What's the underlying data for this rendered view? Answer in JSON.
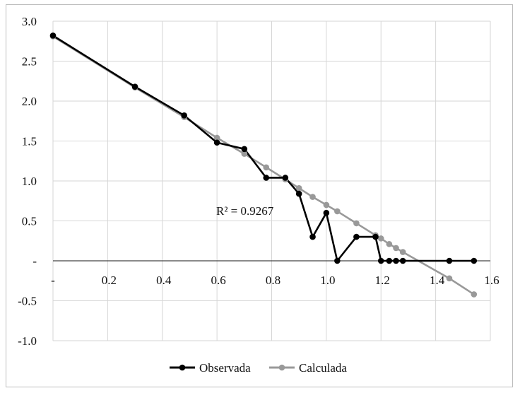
{
  "chart_data": {
    "type": "line",
    "title": "",
    "xlabel": "",
    "ylabel": "",
    "xlim": [
      0,
      1.6
    ],
    "ylim": [
      -1.0,
      3.0
    ],
    "x_ticks": [
      {
        "value": 0,
        "label": "-"
      },
      {
        "value": 0.2,
        "label": "0.2"
      },
      {
        "value": 0.4,
        "label": "0.4"
      },
      {
        "value": 0.6,
        "label": "0.6"
      },
      {
        "value": 0.8,
        "label": "0.8"
      },
      {
        "value": 1.0,
        "label": "1.0"
      },
      {
        "value": 1.2,
        "label": "1.2"
      },
      {
        "value": 1.4,
        "label": "1.4"
      },
      {
        "value": 1.6,
        "label": "1.6"
      }
    ],
    "y_ticks": [
      {
        "value": 3.0,
        "label": "3.0"
      },
      {
        "value": 2.5,
        "label": "2.5"
      },
      {
        "value": 2.0,
        "label": "2.0"
      },
      {
        "value": 1.5,
        "label": "1.5"
      },
      {
        "value": 1.0,
        "label": "1.0"
      },
      {
        "value": 0.5,
        "label": "0.5"
      },
      {
        "value": 0,
        "label": "-"
      },
      {
        "value": -0.5,
        "label": "-0.5"
      },
      {
        "value": -1.0,
        "label": "-1.0"
      }
    ],
    "grid": true,
    "legend": "bottom",
    "annotation": "R² = 0.9267",
    "series": [
      {
        "name": "Observada",
        "color": "#000000",
        "points": [
          [
            0,
            2.82
          ],
          [
            0.3,
            2.18
          ],
          [
            0.48,
            1.82
          ],
          [
            0.6,
            1.48
          ],
          [
            0.7,
            1.4
          ],
          [
            0.78,
            1.04
          ],
          [
            0.85,
            1.04
          ],
          [
            0.9,
            0.84
          ],
          [
            0.95,
            0.3
          ],
          [
            1.0,
            0.6
          ],
          [
            1.04,
            0
          ],
          [
            1.11,
            0.3
          ],
          [
            1.18,
            0.3
          ],
          [
            1.2,
            0
          ],
          [
            1.23,
            0
          ],
          [
            1.255,
            0
          ],
          [
            1.28,
            0
          ],
          [
            1.45,
            0
          ],
          [
            1.54,
            0
          ]
        ]
      },
      {
        "name": "Calculada",
        "color": "#999999",
        "points": [
          [
            0,
            2.81
          ],
          [
            0.3,
            2.17
          ],
          [
            0.48,
            1.8
          ],
          [
            0.6,
            1.54
          ],
          [
            0.7,
            1.34
          ],
          [
            0.78,
            1.17
          ],
          [
            0.85,
            1.02
          ],
          [
            0.9,
            0.91
          ],
          [
            0.95,
            0.8
          ],
          [
            1.0,
            0.7
          ],
          [
            1.04,
            0.62
          ],
          [
            1.11,
            0.47
          ],
          [
            1.18,
            0.32
          ],
          [
            1.2,
            0.28
          ],
          [
            1.23,
            0.21
          ],
          [
            1.255,
            0.16
          ],
          [
            1.28,
            0.11
          ],
          [
            1.45,
            -0.22
          ],
          [
            1.54,
            -0.42
          ]
        ]
      }
    ]
  }
}
